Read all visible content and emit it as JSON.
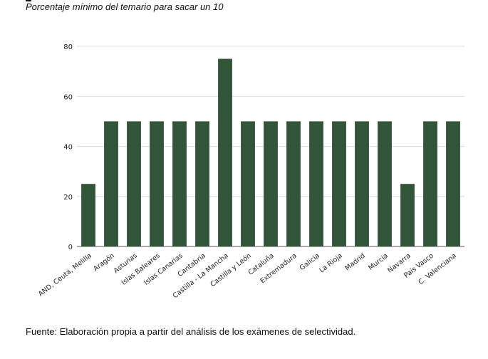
{
  "subtitle": "Porcentaje mínimo del temario para sacar un 10",
  "source": "Fuente: Elaboración propia a partir del análisis de los exámenes de selectividad.",
  "chart_data": {
    "type": "bar",
    "title": "",
    "subtitle": "Porcentaje mínimo del temario para sacar un 10",
    "xlabel": "",
    "ylabel": "",
    "ylim": [
      0,
      80
    ],
    "yticks": [
      0,
      20,
      40,
      60,
      80
    ],
    "grid": true,
    "legend": "none",
    "bar_color": "#33563a",
    "categories": [
      "AND, Ceuta, Melilla",
      "Aragón",
      "Asturias",
      "Islas Baleares",
      "Islas Canarias",
      "Cantabria",
      "Castilla - La Mancha",
      "Castilla y León",
      "Cataluña",
      "Extremadura",
      "Galicia",
      "La Rioja",
      "Madrid",
      "Murcia",
      "Navarra",
      "País Vasco",
      "C. Valenciana"
    ],
    "values": [
      25,
      50,
      50,
      50,
      50,
      50,
      75,
      50,
      50,
      50,
      50,
      50,
      50,
      50,
      25,
      50,
      50
    ]
  }
}
